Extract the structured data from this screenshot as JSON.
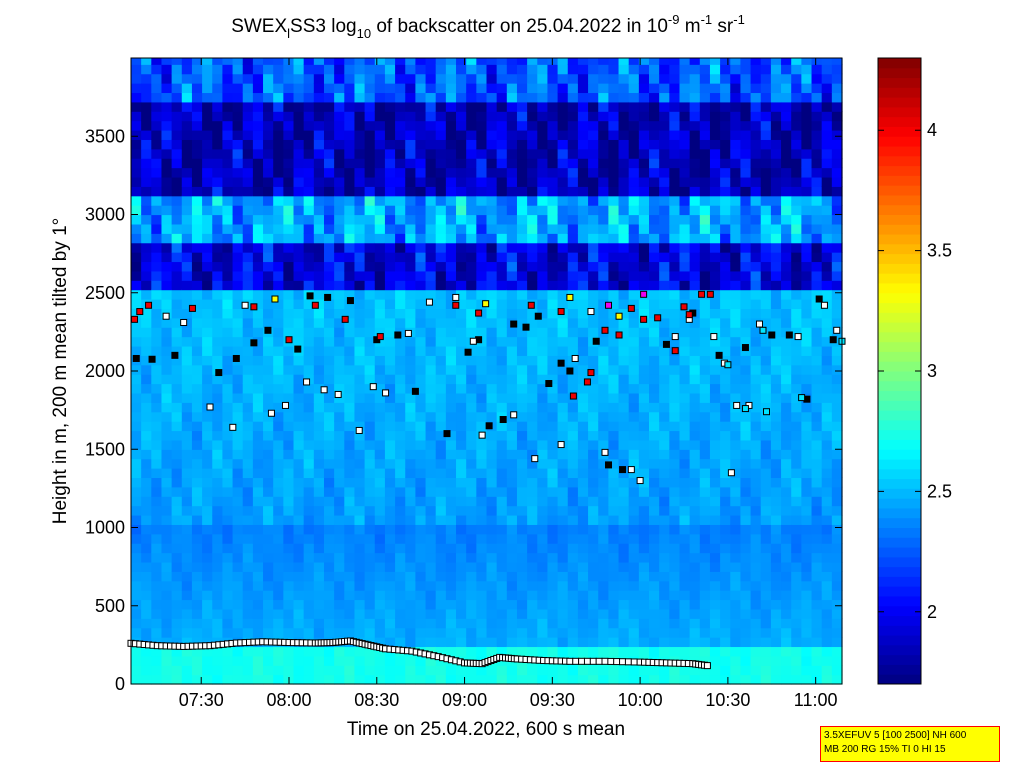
{
  "chart_data": {
    "type": "heatmap",
    "title": {
      "p1": "SWEX",
      "p1_sub": "l",
      "p2": "SS3 log",
      "p2_sub": "10",
      "p3": " of backscatter on 25.04.2022 in 10",
      "p3_sup": "-9",
      "p4": " m",
      "p4_sup": "-1",
      "p5": " sr",
      "p5_sup": "-1"
    },
    "xlabel": "Time on 25.04.2022, 600 s mean",
    "ylabel": "Height in m, 200 m mean tilted by 1°",
    "x_range_hours": [
      7.1,
      11.15
    ],
    "xticks": [
      {
        "t": 7.5,
        "label": "07:30"
      },
      {
        "t": 8.0,
        "label": "08:00"
      },
      {
        "t": 8.5,
        "label": "08:30"
      },
      {
        "t": 9.0,
        "label": "09:00"
      },
      {
        "t": 9.5,
        "label": "09:30"
      },
      {
        "t": 10.0,
        "label": "10:00"
      },
      {
        "t": 10.5,
        "label": "10:30"
      },
      {
        "t": 11.0,
        "label": "11:00"
      }
    ],
    "ylim": [
      0,
      4000
    ],
    "yticks": [
      0,
      500,
      1000,
      1500,
      2000,
      2500,
      3000,
      3500
    ],
    "colorbar": {
      "range": [
        1.7,
        4.3
      ],
      "ticks": [
        2,
        2.5,
        3,
        3.5,
        4
      ],
      "colormap": "jet"
    },
    "boundary_layer_height": {
      "marker": "black square",
      "points": [
        [
          7.1,
          260
        ],
        [
          7.25,
          245
        ],
        [
          7.4,
          240
        ],
        [
          7.55,
          245
        ],
        [
          7.7,
          262
        ],
        [
          7.85,
          270
        ],
        [
          8.0,
          265
        ],
        [
          8.15,
          262
        ],
        [
          8.25,
          265
        ],
        [
          8.35,
          275
        ],
        [
          8.45,
          250
        ],
        [
          8.55,
          225
        ],
        [
          8.7,
          210
        ],
        [
          8.85,
          175
        ],
        [
          9.0,
          135
        ],
        [
          9.1,
          130
        ],
        [
          9.2,
          170
        ],
        [
          9.3,
          160
        ],
        [
          9.45,
          150
        ],
        [
          9.6,
          145
        ],
        [
          9.8,
          145
        ],
        [
          10.0,
          140
        ],
        [
          10.15,
          135
        ],
        [
          10.3,
          130
        ],
        [
          10.4,
          115
        ]
      ]
    },
    "layer_markers": [
      {
        "color": "black",
        "points": [
          [
            7.13,
            2080
          ],
          [
            7.22,
            2075
          ],
          [
            7.35,
            2100
          ],
          [
            7.6,
            1990
          ],
          [
            7.7,
            2080
          ],
          [
            7.8,
            2180
          ],
          [
            7.88,
            2260
          ],
          [
            8.05,
            2140
          ],
          [
            8.12,
            2480
          ],
          [
            8.22,
            2470
          ],
          [
            8.35,
            2450
          ],
          [
            8.5,
            2200
          ],
          [
            8.62,
            2230
          ],
          [
            8.72,
            1870
          ],
          [
            8.9,
            1600
          ],
          [
            9.02,
            2120
          ],
          [
            9.08,
            2200
          ],
          [
            9.14,
            1650
          ],
          [
            9.22,
            1690
          ],
          [
            9.28,
            2300
          ],
          [
            9.35,
            2280
          ],
          [
            9.42,
            2350
          ],
          [
            9.48,
            1920
          ],
          [
            9.55,
            2050
          ],
          [
            9.6,
            2000
          ],
          [
            9.75,
            2190
          ],
          [
            9.82,
            1400
          ],
          [
            9.9,
            1370
          ],
          [
            10.15,
            2170
          ],
          [
            10.3,
            2370
          ],
          [
            10.45,
            2100
          ],
          [
            10.6,
            2150
          ],
          [
            10.75,
            2230
          ],
          [
            10.85,
            2230
          ],
          [
            10.95,
            1820
          ],
          [
            11.02,
            2460
          ],
          [
            11.1,
            2200
          ]
        ]
      },
      {
        "color": "white",
        "points": [
          [
            7.3,
            2350
          ],
          [
            7.4,
            2310
          ],
          [
            7.55,
            1770
          ],
          [
            7.68,
            1640
          ],
          [
            7.75,
            2420
          ],
          [
            7.9,
            1730
          ],
          [
            7.98,
            1780
          ],
          [
            8.1,
            1930
          ],
          [
            8.2,
            1880
          ],
          [
            8.28,
            1850
          ],
          [
            8.4,
            1620
          ],
          [
            8.48,
            1900
          ],
          [
            8.55,
            1860
          ],
          [
            8.68,
            2240
          ],
          [
            8.8,
            2440
          ],
          [
            8.95,
            2470
          ],
          [
            9.05,
            2190
          ],
          [
            9.1,
            1590
          ],
          [
            9.28,
            1720
          ],
          [
            9.4,
            1440
          ],
          [
            9.55,
            1530
          ],
          [
            9.63,
            2080
          ],
          [
            9.72,
            2380
          ],
          [
            9.8,
            1480
          ],
          [
            9.95,
            1370
          ],
          [
            10.0,
            1300
          ],
          [
            10.2,
            2220
          ],
          [
            10.28,
            2330
          ],
          [
            10.42,
            2220
          ],
          [
            10.48,
            2050
          ],
          [
            10.52,
            1350
          ],
          [
            10.55,
            1780
          ],
          [
            10.62,
            1780
          ],
          [
            10.68,
            2300
          ],
          [
            10.9,
            2220
          ],
          [
            11.05,
            2420
          ],
          [
            11.12,
            2260
          ]
        ]
      },
      {
        "color": "red",
        "points": [
          [
            7.12,
            2330
          ],
          [
            7.15,
            2380
          ],
          [
            7.2,
            2420
          ],
          [
            7.45,
            2400
          ],
          [
            7.8,
            2410
          ],
          [
            8.0,
            2200
          ],
          [
            8.15,
            2420
          ],
          [
            8.32,
            2330
          ],
          [
            8.52,
            2220
          ],
          [
            8.95,
            2420
          ],
          [
            9.08,
            2370
          ],
          [
            9.38,
            2420
          ],
          [
            9.55,
            2380
          ],
          [
            9.62,
            1840
          ],
          [
            9.7,
            1930
          ],
          [
            9.72,
            1990
          ],
          [
            9.8,
            2260
          ],
          [
            9.88,
            2230
          ],
          [
            9.95,
            2400
          ],
          [
            10.02,
            2330
          ],
          [
            10.1,
            2340
          ],
          [
            10.2,
            2130
          ],
          [
            10.25,
            2410
          ],
          [
            10.28,
            2360
          ],
          [
            10.35,
            2490
          ],
          [
            10.4,
            2490
          ]
        ]
      },
      {
        "color": "yellow",
        "points": [
          [
            7.92,
            2460
          ],
          [
            9.12,
            2430
          ],
          [
            9.6,
            2470
          ],
          [
            9.88,
            2350
          ]
        ]
      },
      {
        "color": "magenta",
        "points": [
          [
            9.82,
            2420
          ],
          [
            10.02,
            2490
          ]
        ]
      },
      {
        "color": "cyan",
        "points": [
          [
            10.6,
            1760
          ],
          [
            10.72,
            1740
          ],
          [
            10.92,
            1830
          ],
          [
            11.15,
            2190
          ],
          [
            10.7,
            2260
          ],
          [
            10.5,
            2040
          ]
        ]
      }
    ]
  },
  "info_box": {
    "line1": "3.5XEFUV 5 [100 2500] NH 600",
    "line2": "MB 200 RG 15% TI 0 HI 15"
  }
}
